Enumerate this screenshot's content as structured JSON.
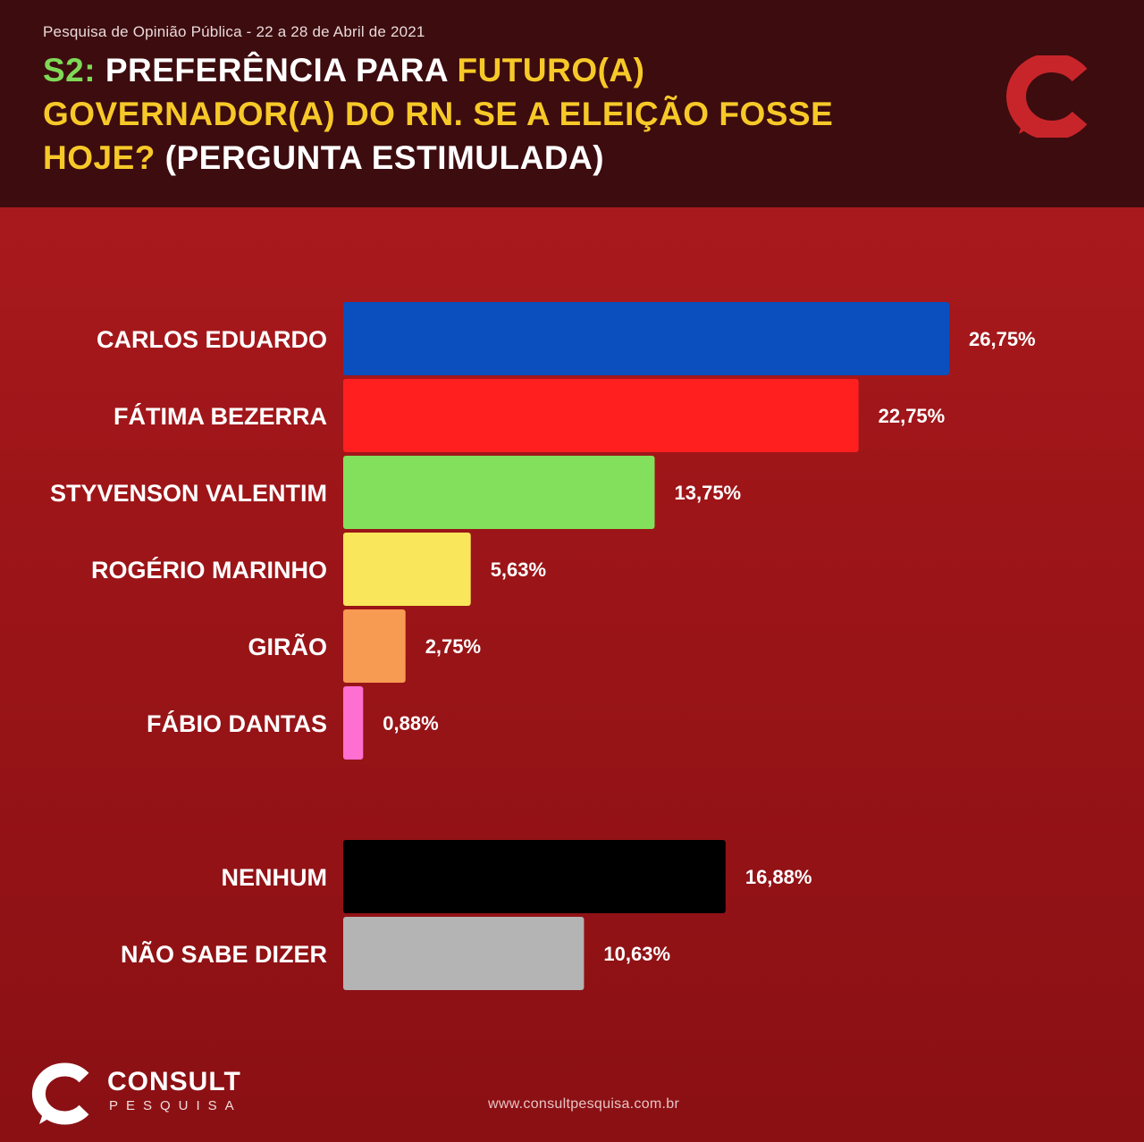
{
  "header": {
    "subtitle": "Pesquisa de Opinião Pública - 22 a 28 de Abril de 2021",
    "title_parts": {
      "code": "S2:",
      "part1": "PREFERÊNCIA PARA",
      "part2": "FUTURO(A) GOVERNADOR(A) DO RN. SE A ELEIÇÃO FOSSE HOJE?",
      "part3": "(PERGUNTA ESTIMULADA)"
    }
  },
  "colors": {
    "header_bg": "#3d0c0f",
    "background": "#9d1518",
    "accent_green": "#7fd957",
    "accent_yellow": "#f7c928"
  },
  "chart_data": {
    "type": "bar",
    "orientation": "horizontal",
    "categories": [
      "CARLOS EDUARDO",
      "FÁTIMA BEZERRA",
      "STYVENSON VALENTIM",
      "ROGÉRIO MARINHO",
      "GIRÃO",
      "FÁBIO DANTAS",
      "NENHUM",
      "NÃO SABE DIZER"
    ],
    "values": [
      26.75,
      22.75,
      13.75,
      5.63,
      2.75,
      0.88,
      16.88,
      10.63
    ],
    "value_labels": [
      "26,75%",
      "22,75%",
      "13,75%",
      "5,63%",
      "2,75%",
      "0,88%",
      "16,88%",
      "10,63%"
    ],
    "colors": [
      "#0a4fbd",
      "#ff1f1f",
      "#83e05c",
      "#f9e65a",
      "#f79a52",
      "#ff6fd1",
      "#000000",
      "#b4b4b4"
    ],
    "groups": [
      6,
      2
    ],
    "xlim": [
      0,
      26.75
    ],
    "grid": false,
    "legend": "none"
  },
  "footer": {
    "brand_name": "CONSULT",
    "brand_sub": "PESQUISA",
    "website": "www.consultpesquisa.com.br"
  }
}
